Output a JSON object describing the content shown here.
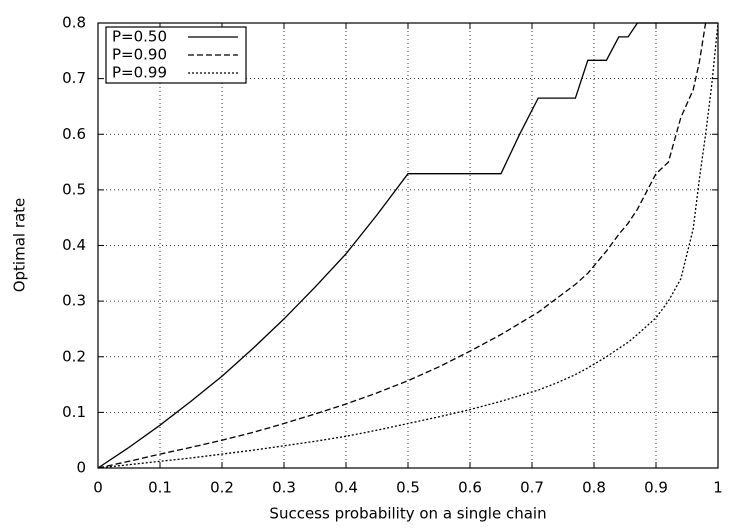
{
  "chart_data": {
    "type": "line",
    "xlabel": "Success probability on a single chain",
    "ylabel": "Optimal rate",
    "x": [
      0,
      0.05,
      0.1,
      0.15,
      0.2,
      0.25,
      0.3,
      0.35,
      0.4,
      0.45,
      0.5,
      0.55,
      0.6,
      0.65,
      0.68,
      0.71,
      0.74,
      0.77,
      0.79,
      0.82,
      0.84,
      0.855,
      0.87,
      0.9,
      0.92,
      0.94,
      0.96,
      0.97,
      0.98,
      0.99,
      1
    ],
    "series": [
      {
        "name": "P=0.50",
        "color": "#000000",
        "dash": "solid",
        "values": [
          0,
          0.037,
          0.077,
          0.12,
          0.165,
          0.215,
          0.268,
          0.325,
          0.385,
          0.455,
          0.529,
          0.529,
          0.529,
          0.529,
          0.6,
          0.665,
          0.665,
          0.665,
          0.733,
          0.733,
          0.775,
          0.775,
          0.8,
          0.8,
          0.8,
          0.8,
          0.8,
          0.8,
          0.8,
          0.8,
          0.8
        ]
      },
      {
        "name": "P=0.90",
        "color": "#000000",
        "dash": "dashed",
        "values": [
          0,
          0.012,
          0.025,
          0.037,
          0.05,
          0.064,
          0.08,
          0.097,
          0.115,
          0.135,
          0.157,
          0.182,
          0.21,
          0.24,
          0.26,
          0.28,
          0.305,
          0.33,
          0.35,
          0.39,
          0.42,
          0.44,
          0.465,
          0.529,
          0.55,
          0.63,
          0.68,
          0.73,
          0.8,
          null,
          null
        ]
      },
      {
        "name": "P=0.99",
        "color": "#000000",
        "dash": "dotted",
        "values": [
          0,
          0.006,
          0.012,
          0.018,
          0.025,
          0.032,
          0.04,
          0.048,
          0.057,
          0.068,
          0.08,
          0.092,
          0.105,
          0.12,
          0.13,
          0.14,
          0.153,
          0.168,
          0.18,
          0.2,
          0.215,
          0.226,
          0.24,
          0.27,
          0.3,
          0.34,
          0.43,
          0.52,
          0.6,
          0.69,
          0.8
        ]
      }
    ],
    "xlim": [
      0,
      1
    ],
    "xticks": [
      0,
      0.1,
      0.2,
      0.3,
      0.4,
      0.5,
      0.6,
      0.7,
      0.8,
      0.9,
      1
    ],
    "ylim": [
      0,
      0.8
    ],
    "yticks": [
      0,
      0.1,
      0.2,
      0.3,
      0.4,
      0.5,
      0.6,
      0.7,
      0.8
    ],
    "grid": true,
    "legend": "top-left"
  }
}
